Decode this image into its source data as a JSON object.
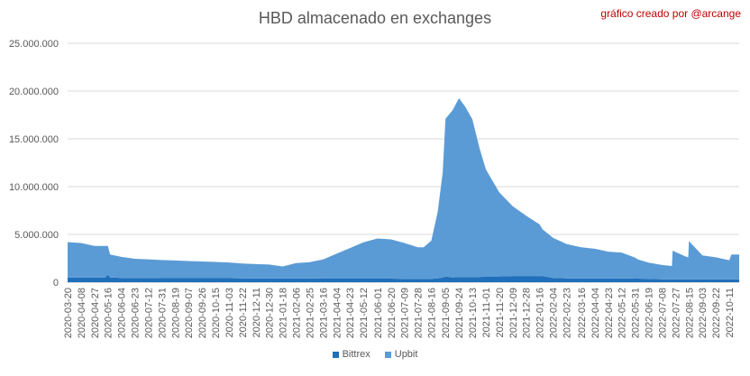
{
  "chart_data": {
    "type": "area",
    "title": "HBD almacenado en exchanges",
    "annotation": "gráfico creado por @arcange",
    "ylim": [
      0,
      25000000
    ],
    "y_ticks": [
      "0",
      "5.000.000",
      "10.000.000",
      "15.000.000",
      "20.000.000",
      "25.000.000"
    ],
    "grid": "horizontal",
    "legend_position": "bottom",
    "x_tick_labels": [
      "2020-03-20",
      "2020-04-08",
      "2020-04-27",
      "2020-05-16",
      "2020-06-04",
      "2020-06-23",
      "2020-07-12",
      "2020-07-31",
      "2020-08-19",
      "2020-09-07",
      "2020-09-26",
      "2020-10-15",
      "2020-11-03",
      "2020-11-22",
      "2020-12-11",
      "2020-12-30",
      "2021-01-18",
      "2021-02-06",
      "2021-02-25",
      "2021-03-16",
      "2021-04-04",
      "2021-04-23",
      "2021-05-12",
      "2021-06-01",
      "2021-06-20",
      "2021-07-09",
      "2021-07-28",
      "2021-08-16",
      "2021-09-05",
      "2021-09-24",
      "2021-10-13",
      "2021-11-01",
      "2021-11-20",
      "2021-12-09",
      "2021-12-28",
      "2022-01-16",
      "2022-02-04",
      "2022-02-23",
      "2022-03-16",
      "2022-04-04",
      "2022-04-23",
      "2022-05-12",
      "2022-05-31",
      "2022-06-19",
      "2022-07-08",
      "2022-07-27",
      "2022-08-15",
      "2022-09-03",
      "2022-09-22",
      "2022-10-11"
    ],
    "x": [
      "2020-03-20",
      "2020-04-08",
      "2020-04-27",
      "2020-05-12",
      "2020-05-16",
      "2020-05-19",
      "2020-06-04",
      "2020-06-23",
      "2020-07-12",
      "2020-07-31",
      "2020-08-19",
      "2020-09-07",
      "2020-09-26",
      "2020-10-15",
      "2020-11-03",
      "2020-11-22",
      "2020-12-11",
      "2020-12-30",
      "2021-01-18",
      "2021-02-06",
      "2021-02-25",
      "2021-03-16",
      "2021-04-04",
      "2021-04-23",
      "2021-05-12",
      "2021-06-01",
      "2021-06-20",
      "2021-07-09",
      "2021-07-28",
      "2021-08-05",
      "2021-08-16",
      "2021-08-25",
      "2021-09-01",
      "2021-09-05",
      "2021-09-15",
      "2021-09-24",
      "2021-10-03",
      "2021-10-13",
      "2021-10-23",
      "2021-11-01",
      "2021-11-20",
      "2021-12-09",
      "2021-12-28",
      "2022-01-16",
      "2022-01-20",
      "2022-02-04",
      "2022-02-23",
      "2022-03-16",
      "2022-04-04",
      "2022-04-23",
      "2022-05-12",
      "2022-05-31",
      "2022-06-04",
      "2022-06-19",
      "2022-07-08",
      "2022-07-22",
      "2022-07-23",
      "2022-08-10",
      "2022-08-14",
      "2022-08-15",
      "2022-09-03",
      "2022-09-22",
      "2022-10-11",
      "2022-10-14",
      "2022-10-25"
    ],
    "series": [
      {
        "name": "Bittrex",
        "color": "#1f6fba",
        "values": [
          500000,
          500000,
          500000,
          500000,
          800000,
          500000,
          450000,
          450000,
          450000,
          420000,
          420000,
          420000,
          420000,
          420000,
          420000,
          400000,
          400000,
          400000,
          400000,
          400000,
          400000,
          380000,
          380000,
          380000,
          380000,
          380000,
          380000,
          350000,
          350000,
          350000,
          350000,
          400000,
          500000,
          600000,
          500000,
          550000,
          550000,
          550000,
          550000,
          600000,
          600000,
          650000,
          650000,
          650000,
          650000,
          450000,
          400000,
          400000,
          400000,
          400000,
          400000,
          380000,
          380000,
          350000,
          300000,
          300000,
          300000,
          300000,
          300000,
          300000,
          300000,
          300000,
          300000,
          300000,
          300000
        ]
      },
      {
        "name": "Upbit",
        "color": "#5b9bd5",
        "values": [
          3700000,
          3600000,
          3300000,
          3300000,
          3000000,
          2400000,
          2200000,
          2000000,
          1950000,
          1900000,
          1850000,
          1800000,
          1750000,
          1700000,
          1650000,
          1550000,
          1500000,
          1450000,
          1250000,
          1600000,
          1700000,
          2000000,
          2600000,
          3200000,
          3800000,
          4200000,
          4100000,
          3750000,
          3300000,
          3300000,
          4000000,
          7000000,
          11000000,
          16500000,
          17500000,
          18700000,
          17800000,
          16500000,
          13500000,
          11200000,
          8800000,
          7300000,
          6300000,
          5400000,
          4900000,
          4200000,
          3600000,
          3250000,
          3100000,
          2800000,
          2700000,
          2200000,
          2000000,
          1700000,
          1500000,
          1400000,
          3000000,
          2400000,
          2300000,
          4000000,
          2500000,
          2300000,
          2000000,
          2600000,
          2600000
        ]
      }
    ]
  }
}
